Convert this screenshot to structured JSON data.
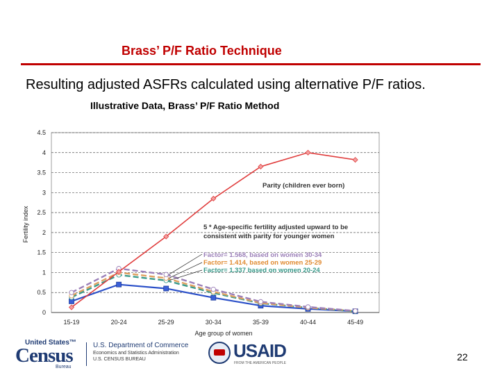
{
  "slide": {
    "title": "Brass’ P/F Ratio Technique",
    "subtitle": "Resulting adjusted ASFRs calculated using alternative P/F ratios.",
    "page_number": "22"
  },
  "footer": {
    "census_top": "United States™",
    "census_big": "Census",
    "census_bureau": "Bureau",
    "doc_line1": "U.S. Department of Commerce",
    "doc_line2": "Economics and Statistics Administration",
    "doc_line3": "U.S. CENSUS BUREAU",
    "usaid": "USAID",
    "usaid_tag": "FROM THE AMERICAN PEOPLE"
  },
  "chart_data": {
    "type": "line",
    "title": "Illustrative Data, Brass’ P/F Ratio Method",
    "xlabel": "Age group of women",
    "ylabel": "Fertility index",
    "categories": [
      "15-19",
      "20-24",
      "25-29",
      "30-34",
      "35-39",
      "40-44",
      "45-49"
    ],
    "ylim": [
      0,
      4.5
    ],
    "yticks": [
      "0",
      "0.5",
      "1",
      "1.5",
      "2",
      "2.5",
      "3",
      "3.5",
      "4",
      "4.5"
    ],
    "grid": true,
    "series": [
      {
        "name": "Parity (children ever born)",
        "color": "#e03c3c",
        "dash": "none",
        "marker": "diamond",
        "values": [
          0.13,
          1.02,
          1.9,
          2.85,
          3.65,
          4.0,
          3.82
        ]
      },
      {
        "name": "",
        "color": "#2a4fc8",
        "dash": "none",
        "marker": "square",
        "values": [
          0.28,
          0.7,
          0.6,
          0.37,
          0.17,
          0.09,
          0.03
        ]
      },
      {
        "name": "Factor= 1.568, based on women 30-34",
        "color": "#9b7fb8",
        "dash": "8,4",
        "marker": "circle",
        "values": [
          0.5,
          1.1,
          0.95,
          0.58,
          0.27,
          0.14,
          0.04
        ]
      },
      {
        "name": "Factor= 1.414, based on women 25-29",
        "color": "#e0a060",
        "dash": "8,4",
        "marker": "circle",
        "values": [
          0.42,
          1.0,
          0.86,
          0.52,
          0.24,
          0.12,
          0.04
        ]
      },
      {
        "name": "Factor= 1.337 based on women 20-24",
        "color": "#3a9a8a",
        "dash": "8,4",
        "marker": "circle",
        "values": [
          0.38,
          0.94,
          0.8,
          0.49,
          0.23,
          0.12,
          0.03
        ]
      }
    ],
    "annotations": [
      "Parity (children ever born)",
      "5 * Age-specific fertility adjusted upward to be",
      "consistent with parity for younger women",
      "Factor= 1.568, based on women 30-34",
      "Factor= 1.414, based on women 25-29",
      "Factor= 1.337 based on women 20-24"
    ]
  }
}
